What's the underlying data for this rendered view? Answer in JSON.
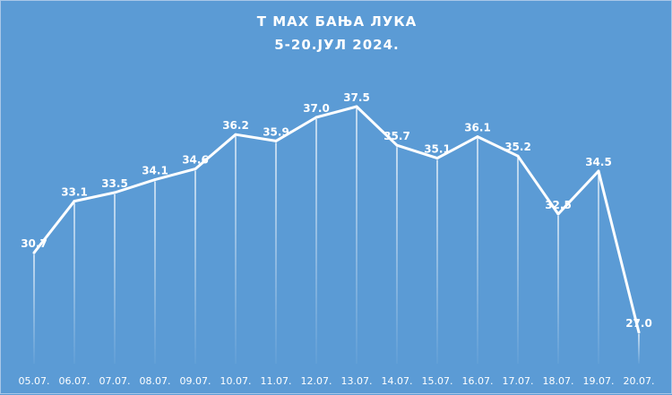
{
  "chart_data": {
    "type": "line",
    "title": [
      "T MAX БАЊА ЛУКА",
      "5-20.ЈУЛ 2024."
    ],
    "categories": [
      "05.07.",
      "06.07.",
      "07.07.",
      "08.07.",
      "09.07.",
      "10.07.",
      "11.07.",
      "12.07.",
      "13.07.",
      "14.07.",
      "15.07.",
      "16.07.",
      "17.07.",
      "18.07.",
      "19.07.",
      "20.07."
    ],
    "values": [
      30.7,
      33.1,
      33.5,
      34.1,
      34.6,
      36.2,
      35.9,
      37.0,
      37.5,
      35.7,
      35.1,
      36.1,
      35.2,
      32.5,
      34.5,
      27.0
    ],
    "data_labels": [
      "30.7",
      "33.1",
      "33.5",
      "34.1",
      "34.6",
      "36.2",
      "35.9",
      "37.0",
      "37.5",
      "35.7",
      "35.1",
      "36.1",
      "35.2",
      "32.5",
      "34.5",
      "27.0"
    ],
    "drop_lines": true,
    "grid": false,
    "legend": "none",
    "colors": {
      "background": "#5b9bd5",
      "line": "#ffffff",
      "text": "#ffffff"
    }
  }
}
